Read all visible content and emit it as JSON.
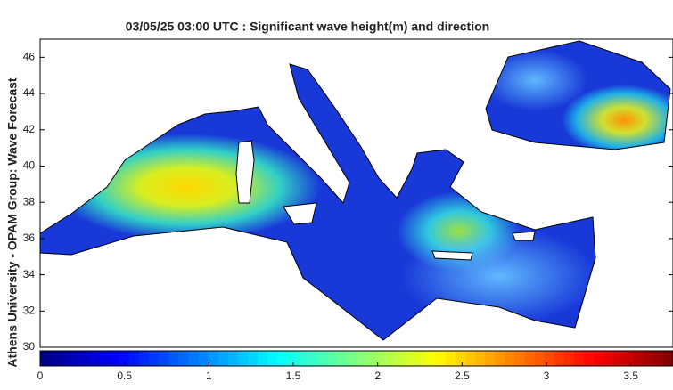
{
  "chart_data": {
    "type": "map",
    "title": "03/05/25 03:00 UTC : Significant wave height(m) and direction",
    "ylabel": "Athens University - OPAM Group: Wave Forecast",
    "ylim": [
      30,
      47
    ],
    "yticks": [
      30,
      32,
      34,
      36,
      38,
      40,
      42,
      44,
      46
    ],
    "colorbar": {
      "lim": [
        0,
        3.75
      ],
      "ticks": [
        0,
        0.5,
        1,
        1.5,
        2,
        2.5,
        3,
        3.5
      ]
    }
  }
}
